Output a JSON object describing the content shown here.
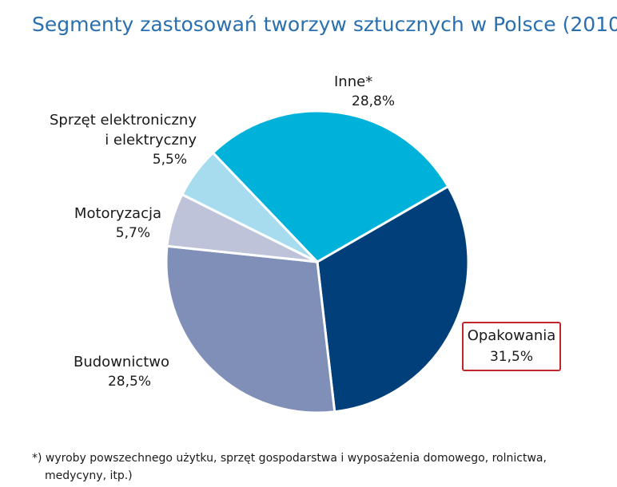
{
  "chart_data": {
    "type": "pie",
    "title": "Segmenty zastosowań tworzyw sztucznych w Polsce (2010)",
    "slices": [
      {
        "label": "Opakowania",
        "value_label": "31,5%",
        "value": 31.5,
        "color": "#003f7a"
      },
      {
        "label": "Budownictwo",
        "value_label": "28,5%",
        "value": 28.5,
        "color": "#7f8fb8"
      },
      {
        "label": "Motoryzacja",
        "value_label": "5,7%",
        "value": 5.7,
        "color": "#bfc3da"
      },
      {
        "label_lines": [
          "Sprzęt elektroniczny",
          "i elektryczny"
        ],
        "value_label": "5,5%",
        "value": 5.5,
        "color": "#a6dcee"
      },
      {
        "label": "Inne*",
        "value_label": "28,8%",
        "value": 28.8,
        "color": "#00b2da"
      }
    ],
    "highlighted_slice": "Opakowania",
    "highlight_color": "#c0272d"
  },
  "footnote": {
    "line1": "*) wyroby powszechnego użytku, sprzęt gospodarstwa i wyposażenia domowego, rolnictwa,",
    "line2": "medycyny, itp.)"
  }
}
